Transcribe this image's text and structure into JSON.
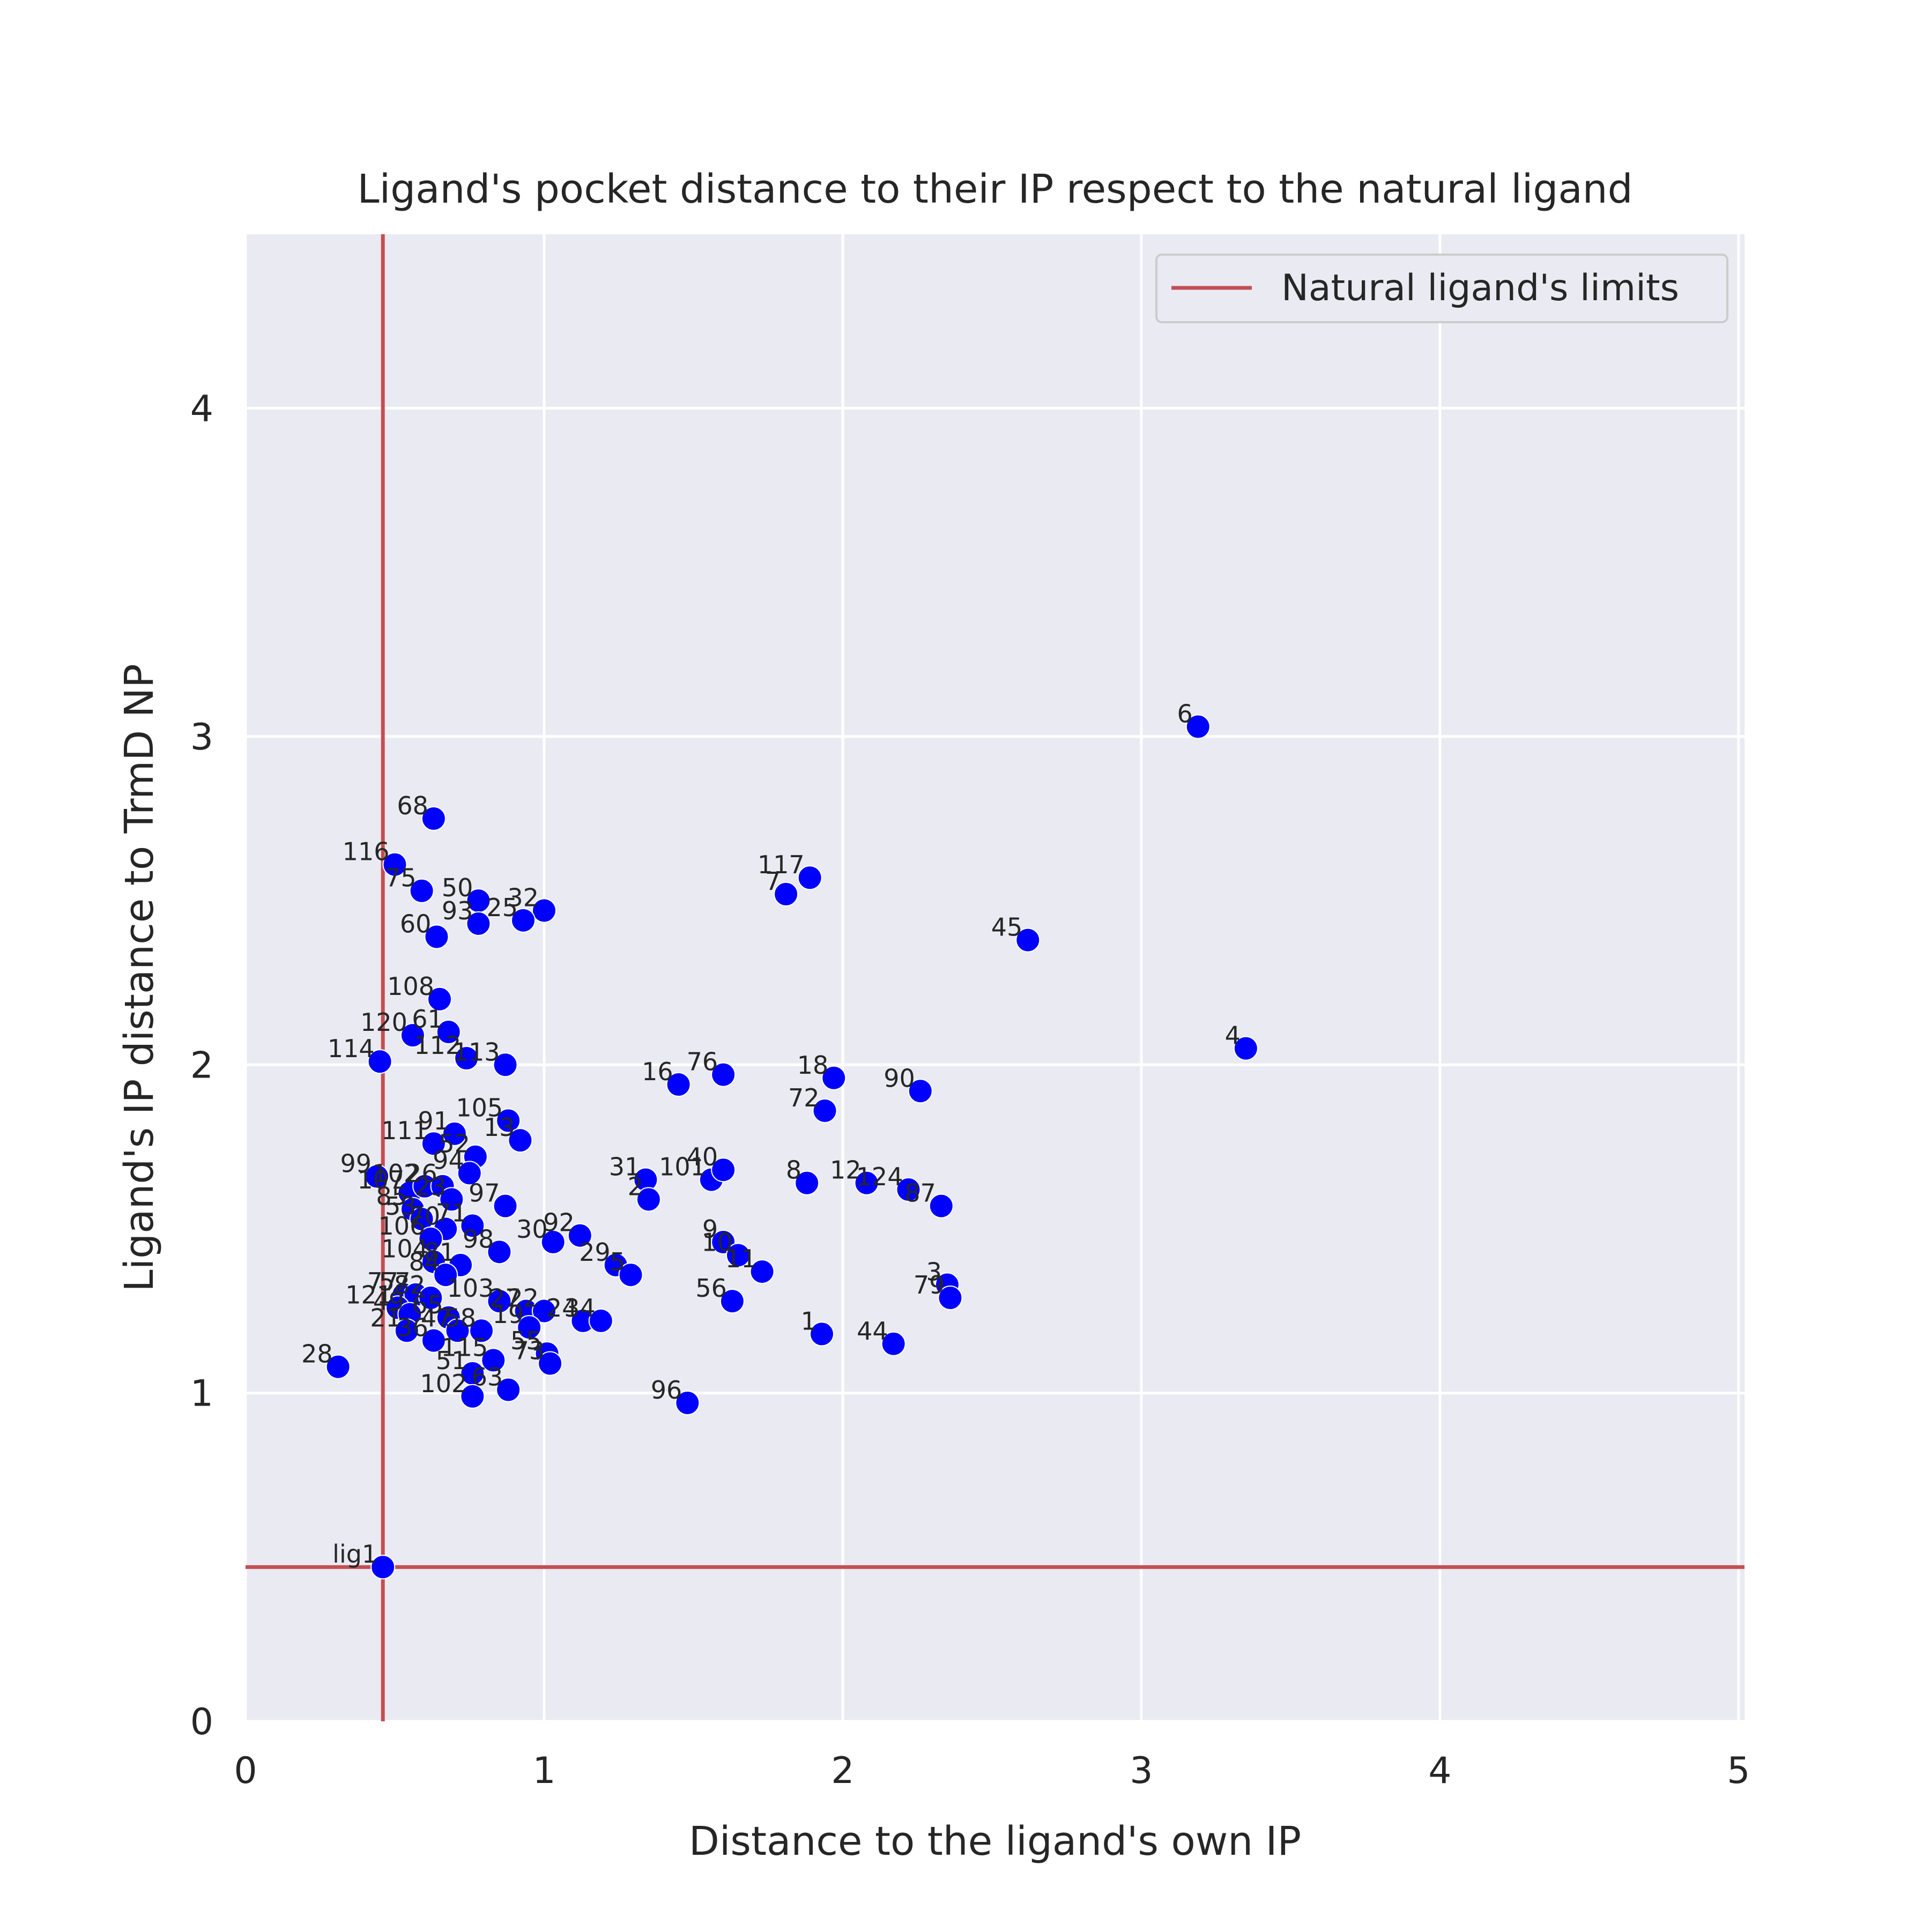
{
  "chart_data": {
    "type": "scatter",
    "title": "Ligand's pocket distance to their IP respect to the natural ligand",
    "xlabel": "Distance to the ligand's own IP",
    "ylabel": "Ligand's IP distance to TrmD NP",
    "xlim": [
      0,
      5.02
    ],
    "ylim": [
      0,
      4.53
    ],
    "xticks": [
      0,
      1,
      2,
      3,
      4,
      5
    ],
    "yticks": [
      0,
      1,
      2,
      3,
      4
    ],
    "xtick_labels": [
      "0",
      "1",
      "2",
      "3",
      "4",
      "5"
    ],
    "ytick_labels": [
      "0",
      "1",
      "2",
      "3",
      "4"
    ],
    "grid": true,
    "legend": {
      "position": "top-right",
      "entries": [
        "Natural ligand's limits"
      ]
    },
    "limit_lines": {
      "name": "Natural ligand's limits",
      "color": "#c44e52",
      "x": 0.46,
      "y": 0.47
    },
    "point_color": "#0000ff",
    "series": [
      {
        "points": [
          {
            "label": "lig1",
            "x": 0.46,
            "y": 0.47
          },
          {
            "label": "6",
            "x": 3.19,
            "y": 3.03
          },
          {
            "label": "68",
            "x": 0.63,
            "y": 2.75
          },
          {
            "label": "116",
            "x": 0.5,
            "y": 2.61
          },
          {
            "label": "75",
            "x": 0.59,
            "y": 2.53
          },
          {
            "label": "50",
            "x": 0.78,
            "y": 2.5
          },
          {
            "label": "32",
            "x": 1.0,
            "y": 2.47
          },
          {
            "label": "93",
            "x": 0.78,
            "y": 2.43
          },
          {
            "label": "25",
            "x": 0.93,
            "y": 2.44
          },
          {
            "label": "60",
            "x": 0.64,
            "y": 2.39
          },
          {
            "label": "117",
            "x": 1.89,
            "y": 2.57
          },
          {
            "label": "7",
            "x": 1.81,
            "y": 2.52
          },
          {
            "label": "45",
            "x": 2.62,
            "y": 2.38
          },
          {
            "label": "108",
            "x": 0.65,
            "y": 2.2
          },
          {
            "label": "120",
            "x": 0.56,
            "y": 2.09
          },
          {
            "label": "61",
            "x": 0.68,
            "y": 2.1
          },
          {
            "label": "114",
            "x": 0.45,
            "y": 2.01
          },
          {
            "label": "112",
            "x": 0.74,
            "y": 2.02
          },
          {
            "label": "113",
            "x": 0.87,
            "y": 2.0
          },
          {
            "label": "4",
            "x": 3.35,
            "y": 2.05
          },
          {
            "label": "16",
            "x": 1.45,
            "y": 1.94
          },
          {
            "label": "76",
            "x": 1.6,
            "y": 1.97
          },
          {
            "label": "18",
            "x": 1.97,
            "y": 1.96
          },
          {
            "label": "90",
            "x": 2.26,
            "y": 1.92
          },
          {
            "label": "72",
            "x": 1.94,
            "y": 1.86
          },
          {
            "label": "105",
            "x": 0.88,
            "y": 1.83
          },
          {
            "label": "111",
            "x": 0.63,
            "y": 1.76
          },
          {
            "label": "91",
            "x": 0.7,
            "y": 1.79
          },
          {
            "label": "13",
            "x": 0.92,
            "y": 1.77
          },
          {
            "label": "52",
            "x": 0.77,
            "y": 1.72
          },
          {
            "label": "94",
            "x": 0.75,
            "y": 1.67
          },
          {
            "label": "99",
            "x": 0.44,
            "y": 1.66
          },
          {
            "label": "107",
            "x": 0.55,
            "y": 1.61
          },
          {
            "label": "102",
            "x": 0.6,
            "y": 1.63
          },
          {
            "label": "26",
            "x": 0.66,
            "y": 1.63
          },
          {
            "label": "23",
            "x": 0.69,
            "y": 1.59
          },
          {
            "label": "85",
            "x": 0.56,
            "y": 1.56
          },
          {
            "label": "97",
            "x": 0.87,
            "y": 1.57
          },
          {
            "label": "53",
            "x": 0.59,
            "y": 1.53
          },
          {
            "label": "71",
            "x": 0.76,
            "y": 1.51
          },
          {
            "label": "70",
            "x": 0.67,
            "y": 1.5
          },
          {
            "label": "31",
            "x": 1.34,
            "y": 1.65
          },
          {
            "label": "101",
            "x": 1.56,
            "y": 1.65
          },
          {
            "label": "40",
            "x": 1.6,
            "y": 1.68
          },
          {
            "label": "2",
            "x": 1.35,
            "y": 1.59
          },
          {
            "label": "8",
            "x": 1.88,
            "y": 1.64
          },
          {
            "label": "12",
            "x": 2.08,
            "y": 1.64
          },
          {
            "label": "124",
            "x": 2.22,
            "y": 1.62
          },
          {
            "label": "87",
            "x": 2.33,
            "y": 1.57
          },
          {
            "label": "106",
            "x": 0.62,
            "y": 1.47
          },
          {
            "label": "30",
            "x": 1.03,
            "y": 1.46
          },
          {
            "label": "92",
            "x": 1.12,
            "y": 1.48
          },
          {
            "label": "98",
            "x": 0.85,
            "y": 1.43
          },
          {
            "label": "9",
            "x": 1.6,
            "y": 1.46
          },
          {
            "label": "10",
            "x": 1.65,
            "y": 1.42
          },
          {
            "label": "29",
            "x": 1.24,
            "y": 1.39
          },
          {
            "label": "5",
            "x": 1.29,
            "y": 1.36
          },
          {
            "label": "11",
            "x": 1.73,
            "y": 1.37
          },
          {
            "label": "104",
            "x": 0.63,
            "y": 1.4
          },
          {
            "label": "81",
            "x": 0.72,
            "y": 1.39
          },
          {
            "label": "84",
            "x": 0.67,
            "y": 1.36
          },
          {
            "label": "3",
            "x": 2.35,
            "y": 1.33
          },
          {
            "label": "79",
            "x": 2.36,
            "y": 1.29
          },
          {
            "label": "77",
            "x": 0.53,
            "y": 1.3
          },
          {
            "label": "57",
            "x": 0.57,
            "y": 1.3
          },
          {
            "label": "82",
            "x": 0.62,
            "y": 1.29
          },
          {
            "label": "103",
            "x": 0.85,
            "y": 1.28
          },
          {
            "label": "27",
            "x": 0.94,
            "y": 1.25
          },
          {
            "label": "22",
            "x": 1.0,
            "y": 1.25
          },
          {
            "label": "24",
            "x": 1.13,
            "y": 1.22
          },
          {
            "label": "34",
            "x": 1.19,
            "y": 1.22
          },
          {
            "label": "56",
            "x": 1.63,
            "y": 1.28
          },
          {
            "label": "1",
            "x": 1.93,
            "y": 1.18
          },
          {
            "label": "44",
            "x": 2.17,
            "y": 1.15
          },
          {
            "label": "121",
            "x": 0.51,
            "y": 1.26
          },
          {
            "label": "49",
            "x": 0.55,
            "y": 1.24
          },
          {
            "label": "65",
            "x": 0.68,
            "y": 1.23
          },
          {
            "label": "21",
            "x": 0.54,
            "y": 1.19
          },
          {
            "label": "36",
            "x": 0.63,
            "y": 1.16
          },
          {
            "label": "47",
            "x": 0.71,
            "y": 1.19
          },
          {
            "label": "58",
            "x": 0.79,
            "y": 1.19
          },
          {
            "label": "19",
            "x": 0.95,
            "y": 1.2
          },
          {
            "label": "28",
            "x": 0.31,
            "y": 1.08
          },
          {
            "label": "115",
            "x": 0.83,
            "y": 1.1
          },
          {
            "label": "55",
            "x": 1.01,
            "y": 1.12
          },
          {
            "label": "73",
            "x": 1.02,
            "y": 1.09
          },
          {
            "label": "51",
            "x": 0.76,
            "y": 1.06
          },
          {
            "label": "102",
            "x": 0.76,
            "y": 0.99
          },
          {
            "label": "63",
            "x": 0.88,
            "y": 1.01
          },
          {
            "label": "96",
            "x": 1.48,
            "y": 0.97
          }
        ]
      }
    ]
  }
}
